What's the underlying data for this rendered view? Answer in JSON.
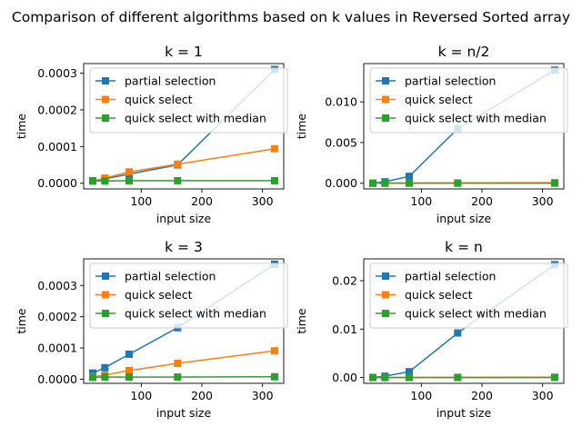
{
  "figure": {
    "title": "Comparison of different algorithms based on k values in Reversed Sorted array"
  },
  "chart_data": [
    {
      "type": "line",
      "title": "k = 1",
      "xlabel": "input size",
      "ylabel": "time",
      "x": [
        20,
        40,
        80,
        160,
        320
      ],
      "xlim": [
        5,
        335
      ],
      "ylim": [
        -1.55e-05,
        0.000326
      ],
      "xticks": [
        100,
        200,
        300
      ],
      "xtick_labels": [
        "100",
        "200",
        "300"
      ],
      "yticks": [
        0,
        0.0001,
        0.0002,
        0.0003
      ],
      "ytick_labels": [
        "0.0000",
        "0.0001",
        "0.0002",
        "0.0003"
      ],
      "legend": "top-left",
      "series": [
        {
          "name": "partial selection",
          "color": "#1f77b4",
          "values": [
            7e-06,
            1.2e-05,
            2.5e-05,
            5e-05,
            0.00031
          ]
        },
        {
          "name": "quick select",
          "color": "#ff7f0e",
          "values": [
            6e-06,
            1.4e-05,
            3.1e-05,
            5.2e-05,
            9.4e-05
          ]
        },
        {
          "name": "quick select with median",
          "color": "#2ca02c",
          "values": [
            6e-06,
            6e-06,
            7e-06,
            7e-06,
            7e-06
          ]
        }
      ]
    },
    {
      "type": "line",
      "title": "k = n/2",
      "xlabel": "input size",
      "ylabel": "time",
      "x": [
        20,
        40,
        80,
        160,
        320
      ],
      "xlim": [
        5,
        335
      ],
      "ylim": [
        -0.0007,
        0.0147
      ],
      "xticks": [
        100,
        200,
        300
      ],
      "xtick_labels": [
        "100",
        "200",
        "300"
      ],
      "yticks": [
        0,
        0.005,
        0.01
      ],
      "ytick_labels": [
        "0.000",
        "0.005",
        "0.010"
      ],
      "legend": "top-left",
      "series": [
        {
          "name": "partial selection",
          "color": "#1f77b4",
          "values": [
            1e-05,
            0.00018,
            0.00085,
            0.0067,
            0.0139
          ]
        },
        {
          "name": "quick select",
          "color": "#ff7f0e",
          "values": [
            5e-06,
            1e-05,
            2e-05,
            4e-05,
            7e-05
          ]
        },
        {
          "name": "quick select with median",
          "color": "#2ca02c",
          "values": [
            5e-06,
            5e-06,
            6e-06,
            6e-06,
            7e-06
          ]
        }
      ]
    },
    {
      "type": "line",
      "title": "k = 3",
      "xlabel": "input size",
      "ylabel": "time",
      "x": [
        20,
        40,
        80,
        160,
        320
      ],
      "xlim": [
        5,
        335
      ],
      "ylim": [
        -1.3e-05,
        0.000385
      ],
      "xticks": [
        100,
        200,
        300
      ],
      "xtick_labels": [
        "100",
        "200",
        "300"
      ],
      "yticks": [
        0,
        0.0001,
        0.0002,
        0.0003
      ],
      "ytick_labels": [
        "0.0000",
        "0.0001",
        "0.0002",
        "0.0003"
      ],
      "legend": "top-left",
      "series": [
        {
          "name": "partial selection",
          "color": "#1f77b4",
          "values": [
            2e-05,
            3.7e-05,
            8e-05,
            0.000165,
            0.000368
          ]
        },
        {
          "name": "quick select",
          "color": "#ff7f0e",
          "values": [
            8e-06,
            1.3e-05,
            2.8e-05,
            5.1e-05,
            9.1e-05
          ]
        },
        {
          "name": "quick select with median",
          "color": "#2ca02c",
          "values": [
            6e-06,
            7e-06,
            7e-06,
            7e-06,
            8e-06
          ]
        }
      ]
    },
    {
      "type": "line",
      "title": "k = n",
      "xlabel": "input size",
      "ylabel": "time",
      "x": [
        20,
        40,
        80,
        160,
        320
      ],
      "xlim": [
        5,
        335
      ],
      "ylim": [
        -0.0012,
        0.0245
      ],
      "xticks": [
        100,
        200,
        300
      ],
      "xtick_labels": [
        "100",
        "200",
        "300"
      ],
      "yticks": [
        0,
        0.01,
        0.02
      ],
      "ytick_labels": [
        "0.00",
        "0.01",
        "0.02"
      ],
      "legend": "top-left",
      "series": [
        {
          "name": "partial selection",
          "color": "#1f77b4",
          "values": [
            2e-05,
            0.00027,
            0.0012,
            0.0092,
            0.0233
          ]
        },
        {
          "name": "quick select",
          "color": "#ff7f0e",
          "values": [
            5e-06,
            1e-05,
            2e-05,
            4e-05,
            7e-05
          ]
        },
        {
          "name": "quick select with median",
          "color": "#2ca02c",
          "values": [
            5e-06,
            5e-06,
            6e-06,
            6e-06,
            7e-06
          ]
        }
      ]
    }
  ]
}
